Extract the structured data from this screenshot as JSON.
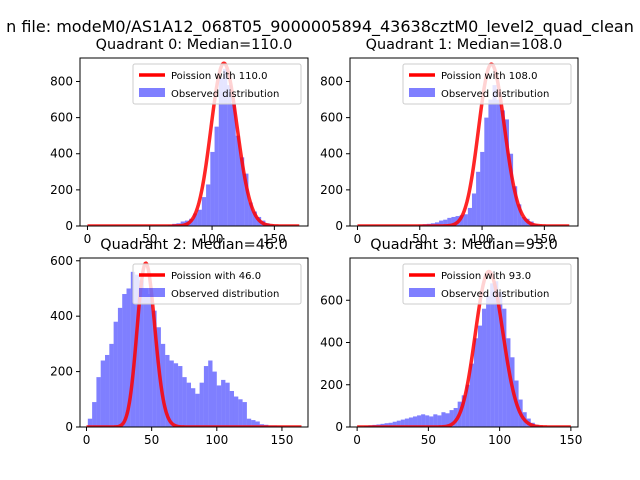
{
  "suptitle": "n file: modeM0/AS1A12_068T05_9000005894_43638cztM0_level2_quad_clean",
  "colors": {
    "model": "#ff0000",
    "observed": "#0000ff"
  },
  "chart_data": [
    {
      "type": "bar",
      "title": "Quadrant 0: Median=110.0",
      "median": 110.0,
      "xlim": [
        -6,
        177
      ],
      "ylim": [
        0,
        930
      ],
      "xticks": [
        0,
        50,
        100,
        150
      ],
      "yticks": [
        0,
        200,
        400,
        600,
        800
      ],
      "legend": [
        "Poission with 110.0",
        "Observed distribution"
      ],
      "legend_position": "top-right",
      "bin_width": 3.4,
      "bins_x": [
        64.6,
        68,
        71.4,
        74.8,
        78.2,
        81.6,
        85,
        88.4,
        91.8,
        95.2,
        98.6,
        102,
        105.4,
        108.8,
        112.2,
        115.6,
        119,
        122.4,
        125.8,
        129.2,
        132.6,
        136,
        139.4,
        142.8,
        146.2,
        149.6
      ],
      "bins_y": [
        5,
        12,
        15,
        25,
        30,
        40,
        70,
        90,
        160,
        230,
        410,
        550,
        820,
        870,
        780,
        680,
        500,
        380,
        290,
        130,
        80,
        50,
        30,
        15,
        8,
        3
      ],
      "model": {
        "x": [
          0,
          170
        ],
        "mean": 110.0,
        "scale": 900
      }
    },
    {
      "type": "bar",
      "title": "Quadrant 1: Median=108.0",
      "median": 108.0,
      "xlim": [
        -6,
        177
      ],
      "ylim": [
        0,
        930
      ],
      "xticks": [
        0,
        50,
        100,
        150
      ],
      "yticks": [
        0,
        200,
        400,
        600,
        800
      ],
      "legend": [
        "Poission with 108.0",
        "Observed distribution"
      ],
      "legend_position": "top-right",
      "bin_width": 3.3,
      "bins_x": [
        49,
        52.3,
        55.6,
        58.9,
        62.2,
        65.5,
        68.8,
        72.1,
        75.4,
        78.7,
        82,
        85.3,
        88.6,
        91.9,
        95.2,
        98.5,
        101.8,
        105.1,
        108.4,
        111.7,
        115,
        118.3,
        121.6,
        124.9,
        128.2,
        131.5,
        134.8,
        138.1,
        141.4,
        144.7
      ],
      "bins_y": [
        8,
        10,
        12,
        15,
        20,
        30,
        35,
        45,
        50,
        55,
        60,
        65,
        100,
        180,
        300,
        410,
        600,
        700,
        780,
        700,
        640,
        590,
        400,
        220,
        120,
        50,
        40,
        25,
        10,
        5
      ],
      "model": {
        "x": [
          0,
          170
        ],
        "mean": 108.0,
        "scale": 895
      }
    },
    {
      "type": "bar",
      "title": "Quadrant 2: Median=46.0",
      "median": 46.0,
      "xlim": [
        -5,
        170
      ],
      "ylim": [
        0,
        610
      ],
      "xticks": [
        0,
        50,
        100,
        150
      ],
      "yticks": [
        0,
        200,
        400,
        600
      ],
      "legend": [
        "Poission with 46.0",
        "Observed distribution"
      ],
      "legend_position": "top-right",
      "bin_width": 3.3,
      "bins_x": [
        1,
        4.3,
        7.6,
        10.9,
        14.2,
        17.5,
        20.8,
        24.1,
        27.4,
        30.7,
        34,
        37.3,
        40.6,
        43.9,
        47.2,
        50.5,
        53.8,
        57.1,
        60.4,
        63.7,
        67,
        70.3,
        73.6,
        76.9,
        80.2,
        83.5,
        86.8,
        90.1,
        93.4,
        96.7,
        100,
        103.3,
        106.6,
        109.9,
        113.2,
        116.5,
        119.8,
        123.1,
        126.4,
        129.7,
        133,
        136.3,
        139.6,
        142.9,
        146.2,
        149.5
      ],
      "bins_y": [
        30,
        90,
        180,
        240,
        260,
        300,
        380,
        430,
        480,
        500,
        560,
        550,
        530,
        500,
        480,
        420,
        360,
        300,
        260,
        240,
        230,
        220,
        180,
        160,
        140,
        120,
        160,
        220,
        240,
        200,
        150,
        170,
        160,
        130,
        110,
        100,
        90,
        30,
        25,
        20,
        10,
        8,
        5,
        5,
        3,
        2
      ],
      "model": {
        "x": [
          0,
          165
        ],
        "mean": 46.0,
        "scale": 590
      }
    },
    {
      "type": "bar",
      "title": "Quadrant 3: Median=93.0",
      "median": 93.0,
      "xlim": [
        -5,
        155
      ],
      "ylim": [
        0,
        800
      ],
      "xticks": [
        0,
        50,
        100,
        150
      ],
      "yticks": [
        0,
        200,
        400,
        600
      ],
      "legend": [
        "Poission with 93.0",
        "Observed distribution"
      ],
      "legend_position": "top-right",
      "bin_width": 2.85,
      "bins_x": [
        5,
        7.85,
        10.7,
        13.55,
        16.4,
        19.25,
        22.1,
        24.95,
        27.8,
        30.65,
        33.5,
        36.35,
        39.2,
        42.05,
        44.9,
        47.75,
        50.6,
        53.45,
        56.3,
        59.15,
        62,
        64.85,
        67.7,
        70.55,
        73.4,
        76.25,
        79.1,
        81.95,
        84.8,
        87.65,
        90.5,
        93.35,
        96.2,
        99.05,
        101.9,
        104.75,
        107.6,
        110.45,
        113.3,
        116.15,
        119,
        121.85,
        124.7,
        127.55,
        130.4
      ],
      "bins_y": [
        5,
        8,
        10,
        12,
        15,
        18,
        20,
        25,
        30,
        35,
        40,
        45,
        50,
        55,
        60,
        55,
        50,
        60,
        55,
        70,
        65,
        80,
        90,
        120,
        150,
        200,
        300,
        420,
        480,
        560,
        620,
        680,
        690,
        640,
        560,
        420,
        330,
        220,
        130,
        70,
        40,
        20,
        10,
        5,
        2
      ],
      "model": {
        "x": [
          0,
          150
        ],
        "mean": 93.0,
        "scale": 735
      }
    }
  ]
}
